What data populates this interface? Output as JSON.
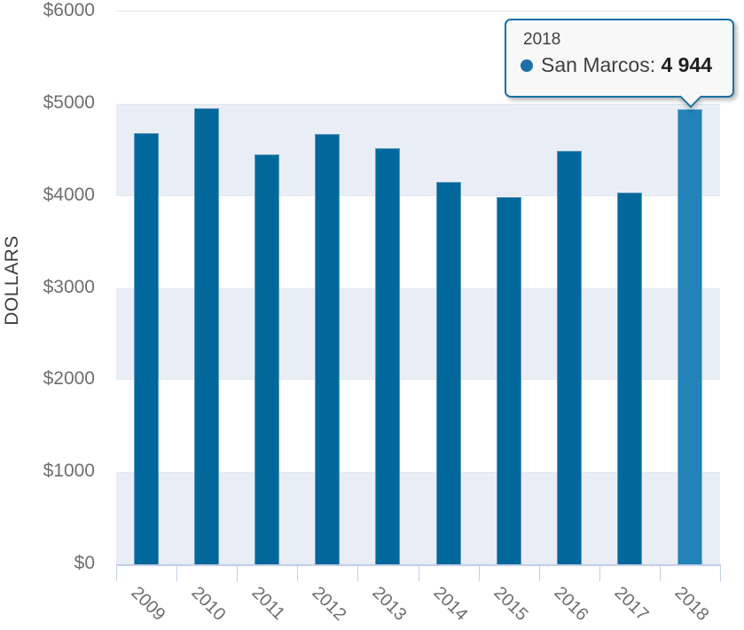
{
  "chart_data": {
    "type": "bar",
    "title": "",
    "xlabel": "",
    "ylabel": "DOLLARS",
    "categories": [
      "2009",
      "2010",
      "2011",
      "2012",
      "2013",
      "2014",
      "2015",
      "2016",
      "2017",
      "2018"
    ],
    "series": [
      {
        "name": "San Marcos",
        "values": [
          4680,
          4955,
          4450,
          4670,
          4520,
          4155,
          3990,
          4485,
          4035,
          4944
        ]
      }
    ],
    "ylim": [
      0,
      6000
    ],
    "y_tick_values": [
      0,
      1000,
      2000,
      3000,
      4000,
      5000,
      6000
    ],
    "y_tick_labels": [
      "$0",
      "$1000",
      "$2000",
      "$3000",
      "$4000",
      "$5000",
      "$6000"
    ],
    "shaded_bands": [
      [
        0,
        1000
      ],
      [
        2000,
        3000
      ],
      [
        4000,
        5000
      ]
    ],
    "grid": "alternating-horizontal-bands",
    "legend_position": "none",
    "highlighted_category": "2018"
  },
  "tooltip": {
    "title": "2018",
    "series_label": "San Marcos",
    "separator": ": ",
    "value": "4 944",
    "marker": "circle-dot"
  },
  "colors": {
    "bar": "#02689c",
    "bar_border": "#5e9abd",
    "bar_highlight": "#2183b8",
    "bar_highlight_border": "#7ab3d3",
    "band": "#e9edf5",
    "band_edge": "#e3e6ee",
    "grid_top_line": "#e4e4e4",
    "axis_line": "#c3cfe6",
    "tick_label": "#6e6e6e",
    "axis_title": "#3c3c3c",
    "tooltip_border": "#1d6fa5",
    "tooltip_bg": "#f8f8f8",
    "tooltip_text": "#3f3f3f",
    "tooltip_marker": "#1d6fa5"
  }
}
